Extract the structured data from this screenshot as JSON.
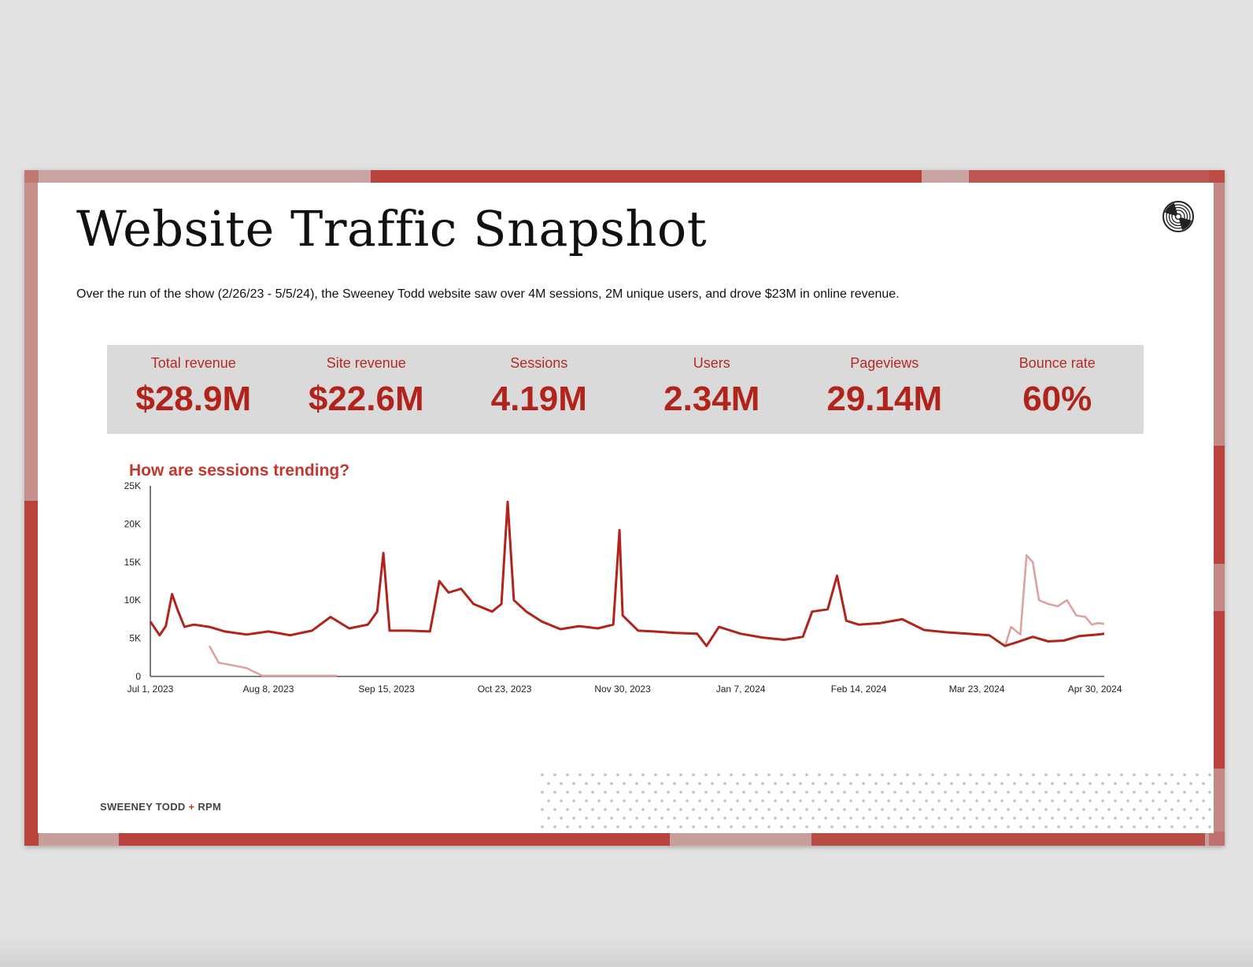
{
  "slide": {
    "title": "Website Traffic Snapshot",
    "subtitle": "Over the run of the show (2/26/23 - 5/5/24), the Sweeney Todd website saw over 4M sessions, 2M unique users, and drove $23M in online revenue.",
    "logo_icon": "vinyl-record-icon",
    "footer": {
      "brand": "SWEENEY TODD",
      "plus": "+",
      "partner": "RPM"
    }
  },
  "kpis": [
    {
      "label": "Total revenue",
      "value": "$28.9M"
    },
    {
      "label": "Site revenue",
      "value": "$22.6M"
    },
    {
      "label": "Sessions",
      "value": "4.19M"
    },
    {
      "label": "Users",
      "value": "2.34M"
    },
    {
      "label": "Pageviews",
      "value": "29.14M"
    },
    {
      "label": "Bounce rate",
      "value": "60%"
    }
  ],
  "colors": {
    "accent": "#b0241c",
    "comparison": "#dba3a0",
    "kpi_background": "#dadada"
  },
  "chart_data": {
    "type": "line",
    "title": "How are sessions trending?",
    "x_range": [
      "Jul 1, 2023",
      "May 3, 2024"
    ],
    "ylim": [
      0,
      25000
    ],
    "y_ticks": [
      "0",
      "5K",
      "10K",
      "15K",
      "20K",
      "25K"
    ],
    "x_ticks": [
      "Jul 1, 2023",
      "Aug 8, 2023",
      "Sep 15, 2023",
      "Oct 23, 2023",
      "Nov 30, 2023",
      "Jan 7, 2024",
      "Feb 14, 2024",
      "Mar 23, 2024",
      "Apr 30, 2024"
    ],
    "grid": false,
    "legend": "none",
    "series": [
      {
        "color": "#b0241c",
        "points": [
          [
            "Jul 1, 2023",
            7200
          ],
          [
            "Jul 4, 2023",
            5400
          ],
          [
            "Jul 6, 2023",
            6600
          ],
          [
            "Jul 8, 2023",
            10800
          ],
          [
            "Jul 10, 2023",
            8500
          ],
          [
            "Jul 12, 2023",
            6500
          ],
          [
            "Jul 15, 2023",
            6800
          ],
          [
            "Jul 20, 2023",
            6500
          ],
          [
            "Jul 25, 2023",
            5900
          ],
          [
            "Aug 1, 2023",
            5500
          ],
          [
            "Aug 8, 2023",
            5900
          ],
          [
            "Aug 15, 2023",
            5400
          ],
          [
            "Aug 22, 2023",
            6000
          ],
          [
            "Aug 28, 2023",
            7800
          ],
          [
            "Sep 3, 2023",
            6300
          ],
          [
            "Sep 9, 2023",
            6800
          ],
          [
            "Sep 12, 2023",
            8500
          ],
          [
            "Sep 14, 2023",
            16200
          ],
          [
            "Sep 16, 2023",
            6000
          ],
          [
            "Sep 22, 2023",
            6000
          ],
          [
            "Sep 29, 2023",
            5900
          ],
          [
            "Oct 2, 2023",
            12500
          ],
          [
            "Oct 5, 2023",
            11000
          ],
          [
            "Oct 9, 2023",
            11500
          ],
          [
            "Oct 13, 2023",
            9500
          ],
          [
            "Oct 19, 2023",
            8500
          ],
          [
            "Oct 22, 2023",
            9500
          ],
          [
            "Oct 24, 2023",
            22900
          ],
          [
            "Oct 26, 2023",
            10000
          ],
          [
            "Oct 30, 2023",
            8500
          ],
          [
            "Nov 4, 2023",
            7200
          ],
          [
            "Nov 10, 2023",
            6200
          ],
          [
            "Nov 16, 2023",
            6600
          ],
          [
            "Nov 22, 2023",
            6300
          ],
          [
            "Nov 27, 2023",
            6800
          ],
          [
            "Nov 29, 2023",
            19200
          ],
          [
            "Nov 30, 2023",
            8000
          ],
          [
            "Dec 5, 2023",
            6000
          ],
          [
            "Dec 10, 2023",
            5900
          ],
          [
            "Dec 17, 2023",
            5700
          ],
          [
            "Dec 24, 2023",
            5600
          ],
          [
            "Dec 27, 2023",
            4000
          ],
          [
            "Dec 31, 2023",
            6500
          ],
          [
            "Jan 7, 2024",
            5600
          ],
          [
            "Jan 14, 2024",
            5100
          ],
          [
            "Jan 21, 2024",
            4800
          ],
          [
            "Jan 27, 2024",
            5200
          ],
          [
            "Jan 30, 2024",
            8500
          ],
          [
            "Feb 4, 2024",
            8800
          ],
          [
            "Feb 7, 2024",
            13200
          ],
          [
            "Feb 10, 2024",
            7300
          ],
          [
            "Feb 14, 2024",
            6800
          ],
          [
            "Feb 21, 2024",
            7000
          ],
          [
            "Feb 28, 2024",
            7500
          ],
          [
            "Mar 6, 2024",
            6100
          ],
          [
            "Mar 13, 2024",
            5800
          ],
          [
            "Mar 20, 2024",
            5600
          ],
          [
            "Mar 27, 2024",
            5400
          ],
          [
            "Apr 1, 2024",
            4000
          ],
          [
            "Apr 5, 2024",
            4500
          ],
          [
            "Apr 10, 2024",
            5200
          ],
          [
            "Apr 15, 2024",
            4600
          ],
          [
            "Apr 20, 2024",
            4700
          ],
          [
            "Apr 25, 2024",
            5300
          ],
          [
            "May 1, 2024",
            5500
          ],
          [
            "May 3, 2024",
            5600
          ]
        ]
      },
      {
        "color": "#dba3a0",
        "points": [
          [
            "Jul 20, 2023",
            4000
          ],
          [
            "Jul 23, 2023",
            1800
          ],
          [
            "Jul 27, 2023",
            1500
          ],
          [
            "Aug 1, 2023",
            1100
          ],
          [
            "Aug 6, 2023",
            100
          ],
          [
            "Aug 30, 2023",
            100
          ]
        ]
      },
      {
        "color": "#dba3a0",
        "points": [
          [
            "Apr 1, 2024",
            3900
          ],
          [
            "Apr 3, 2024",
            6500
          ],
          [
            "Apr 6, 2024",
            5500
          ],
          [
            "Apr 8, 2024",
            15900
          ],
          [
            "Apr 10, 2024",
            15000
          ],
          [
            "Apr 12, 2024",
            10000
          ],
          [
            "Apr 15, 2024",
            9500
          ],
          [
            "Apr 18, 2024",
            9200
          ],
          [
            "Apr 21, 2024",
            10000
          ],
          [
            "Apr 24, 2024",
            8000
          ],
          [
            "Apr 27, 2024",
            7800
          ],
          [
            "Apr 29, 2024",
            6800
          ],
          [
            "May 1, 2024",
            7000
          ],
          [
            "May 3, 2024",
            6900
          ]
        ]
      }
    ]
  }
}
